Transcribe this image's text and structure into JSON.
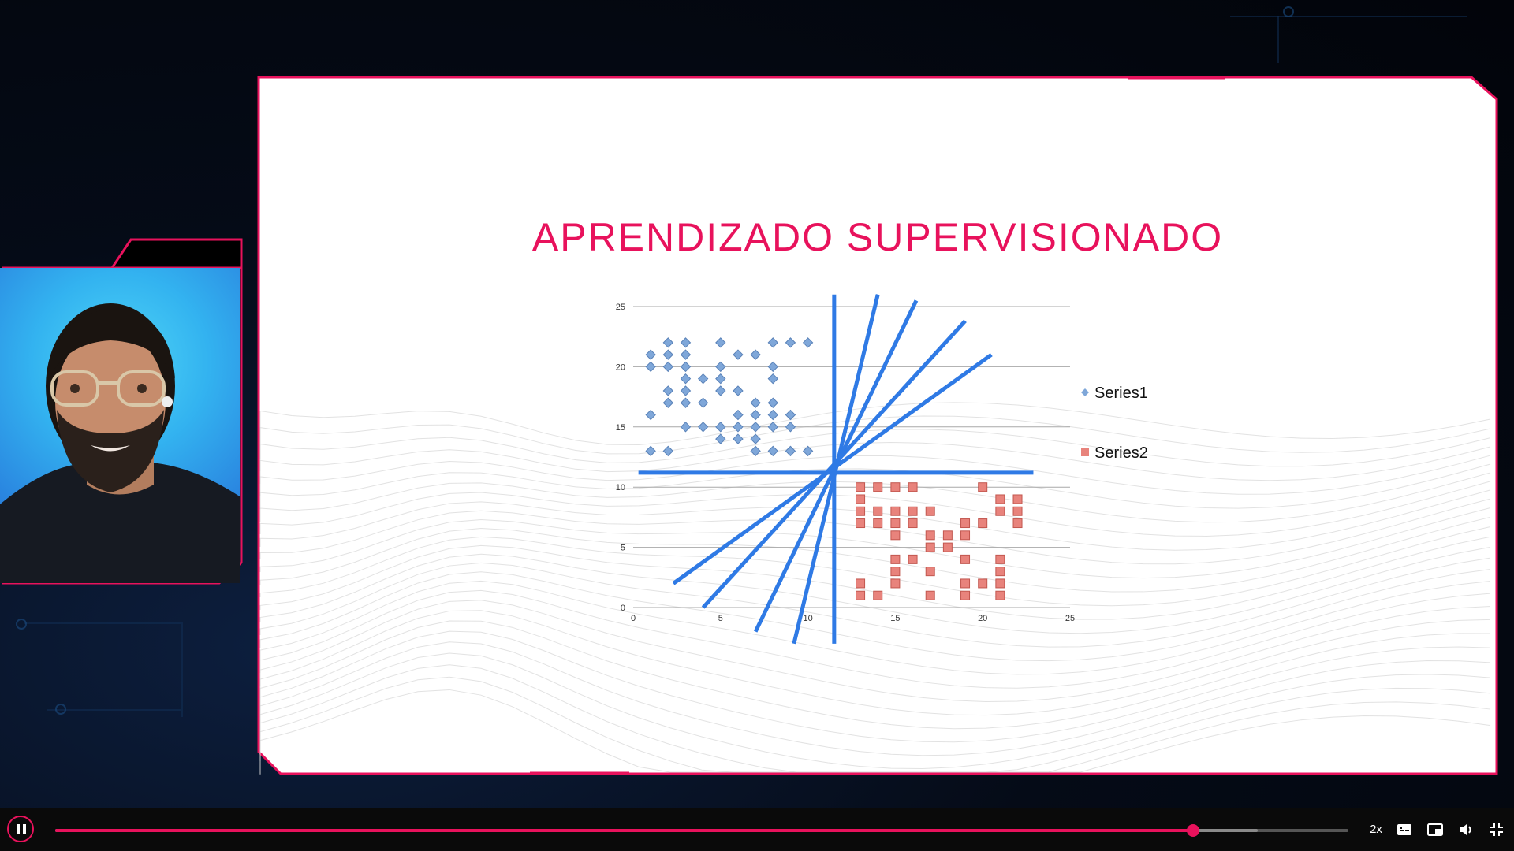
{
  "slide": {
    "title": "APRENDIZADO SUPERVISIONADO"
  },
  "colors": {
    "accent": "#e8125c",
    "line_blue": "#2f7ae5",
    "series1": "#7fa7d9",
    "series2": "#e8837c"
  },
  "chart_data": {
    "type": "scatter",
    "xlim": [
      0,
      25
    ],
    "ylim": [
      0,
      25
    ],
    "x_ticks": [
      "0",
      "5",
      "10",
      "15",
      "20",
      "25"
    ],
    "y_ticks": [
      "0",
      "5",
      "10",
      "15",
      "20",
      "25"
    ],
    "grid": "horizontal",
    "legend_position": "right",
    "series": [
      {
        "name": "Series1",
        "marker": "diamond",
        "points": [
          [
            1,
            21
          ],
          [
            1,
            20
          ],
          [
            1,
            16
          ],
          [
            1,
            13
          ],
          [
            2,
            22
          ],
          [
            2,
            21
          ],
          [
            2,
            20
          ],
          [
            2,
            18
          ],
          [
            2,
            17
          ],
          [
            2,
            13
          ],
          [
            3,
            22
          ],
          [
            3,
            21
          ],
          [
            3,
            20
          ],
          [
            3,
            19
          ],
          [
            3,
            18
          ],
          [
            3,
            17
          ],
          [
            3,
            15
          ],
          [
            4,
            19
          ],
          [
            4,
            17
          ],
          [
            4,
            15
          ],
          [
            5,
            22
          ],
          [
            5,
            20
          ],
          [
            5,
            19
          ],
          [
            5,
            18
          ],
          [
            5,
            15
          ],
          [
            5,
            14
          ],
          [
            6,
            21
          ],
          [
            6,
            18
          ],
          [
            6,
            16
          ],
          [
            6,
            15
          ],
          [
            6,
            14
          ],
          [
            7,
            21
          ],
          [
            7,
            17
          ],
          [
            7,
            16
          ],
          [
            7,
            15
          ],
          [
            7,
            14
          ],
          [
            7,
            13
          ],
          [
            8,
            22
          ],
          [
            8,
            20
          ],
          [
            8,
            19
          ],
          [
            8,
            17
          ],
          [
            8,
            16
          ],
          [
            8,
            15
          ],
          [
            8,
            13
          ],
          [
            9,
            22
          ],
          [
            9,
            16
          ],
          [
            9,
            15
          ],
          [
            9,
            13
          ],
          [
            10,
            22
          ],
          [
            10,
            13
          ]
        ]
      },
      {
        "name": "Series2",
        "marker": "square",
        "points": [
          [
            13,
            10
          ],
          [
            13,
            9
          ],
          [
            13,
            8
          ],
          [
            13,
            7
          ],
          [
            13,
            2
          ],
          [
            13,
            1
          ],
          [
            14,
            10
          ],
          [
            14,
            8
          ],
          [
            14,
            7
          ],
          [
            14,
            1
          ],
          [
            15,
            10
          ],
          [
            15,
            8
          ],
          [
            15,
            7
          ],
          [
            15,
            6
          ],
          [
            15,
            4
          ],
          [
            15,
            3
          ],
          [
            15,
            2
          ],
          [
            16,
            10
          ],
          [
            16,
            8
          ],
          [
            16,
            7
          ],
          [
            16,
            4
          ],
          [
            17,
            8
          ],
          [
            17,
            6
          ],
          [
            17,
            5
          ],
          [
            17,
            3
          ],
          [
            17,
            1
          ],
          [
            18,
            6
          ],
          [
            18,
            5
          ],
          [
            19,
            7
          ],
          [
            19,
            6
          ],
          [
            19,
            4
          ],
          [
            19,
            2
          ],
          [
            19,
            1
          ],
          [
            20,
            10
          ],
          [
            20,
            7
          ],
          [
            20,
            2
          ],
          [
            21,
            9
          ],
          [
            21,
            8
          ],
          [
            21,
            4
          ],
          [
            21,
            3
          ],
          [
            21,
            2
          ],
          [
            21,
            1
          ],
          [
            22,
            9
          ],
          [
            22,
            8
          ],
          [
            22,
            7
          ]
        ]
      }
    ],
    "annotation_lines": [
      {
        "label": "vertical",
        "from": [
          11.5,
          26
        ],
        "to": [
          11.5,
          -3
        ]
      },
      {
        "label": "horizontal",
        "from": [
          0.3,
          11.2
        ],
        "to": [
          22.9,
          11.2
        ]
      },
      {
        "label": "steep-1",
        "from": [
          9.2,
          -3
        ],
        "to": [
          14,
          26
        ]
      },
      {
        "label": "steep-2",
        "from": [
          7,
          -2
        ],
        "to": [
          16.2,
          25.5
        ]
      },
      {
        "label": "diag-1",
        "from": [
          4,
          0
        ],
        "to": [
          19,
          23.8
        ]
      },
      {
        "label": "diag-2",
        "from": [
          2.3,
          2
        ],
        "to": [
          20.5,
          21
        ]
      }
    ]
  },
  "player": {
    "speed_label": "2x",
    "progress_fraction": 0.88,
    "buffered_fraction": 0.93,
    "icons": [
      "pause-icon",
      "subtitles-icon",
      "picture-in-picture-icon",
      "volume-icon",
      "exit-fullscreen-icon"
    ]
  }
}
